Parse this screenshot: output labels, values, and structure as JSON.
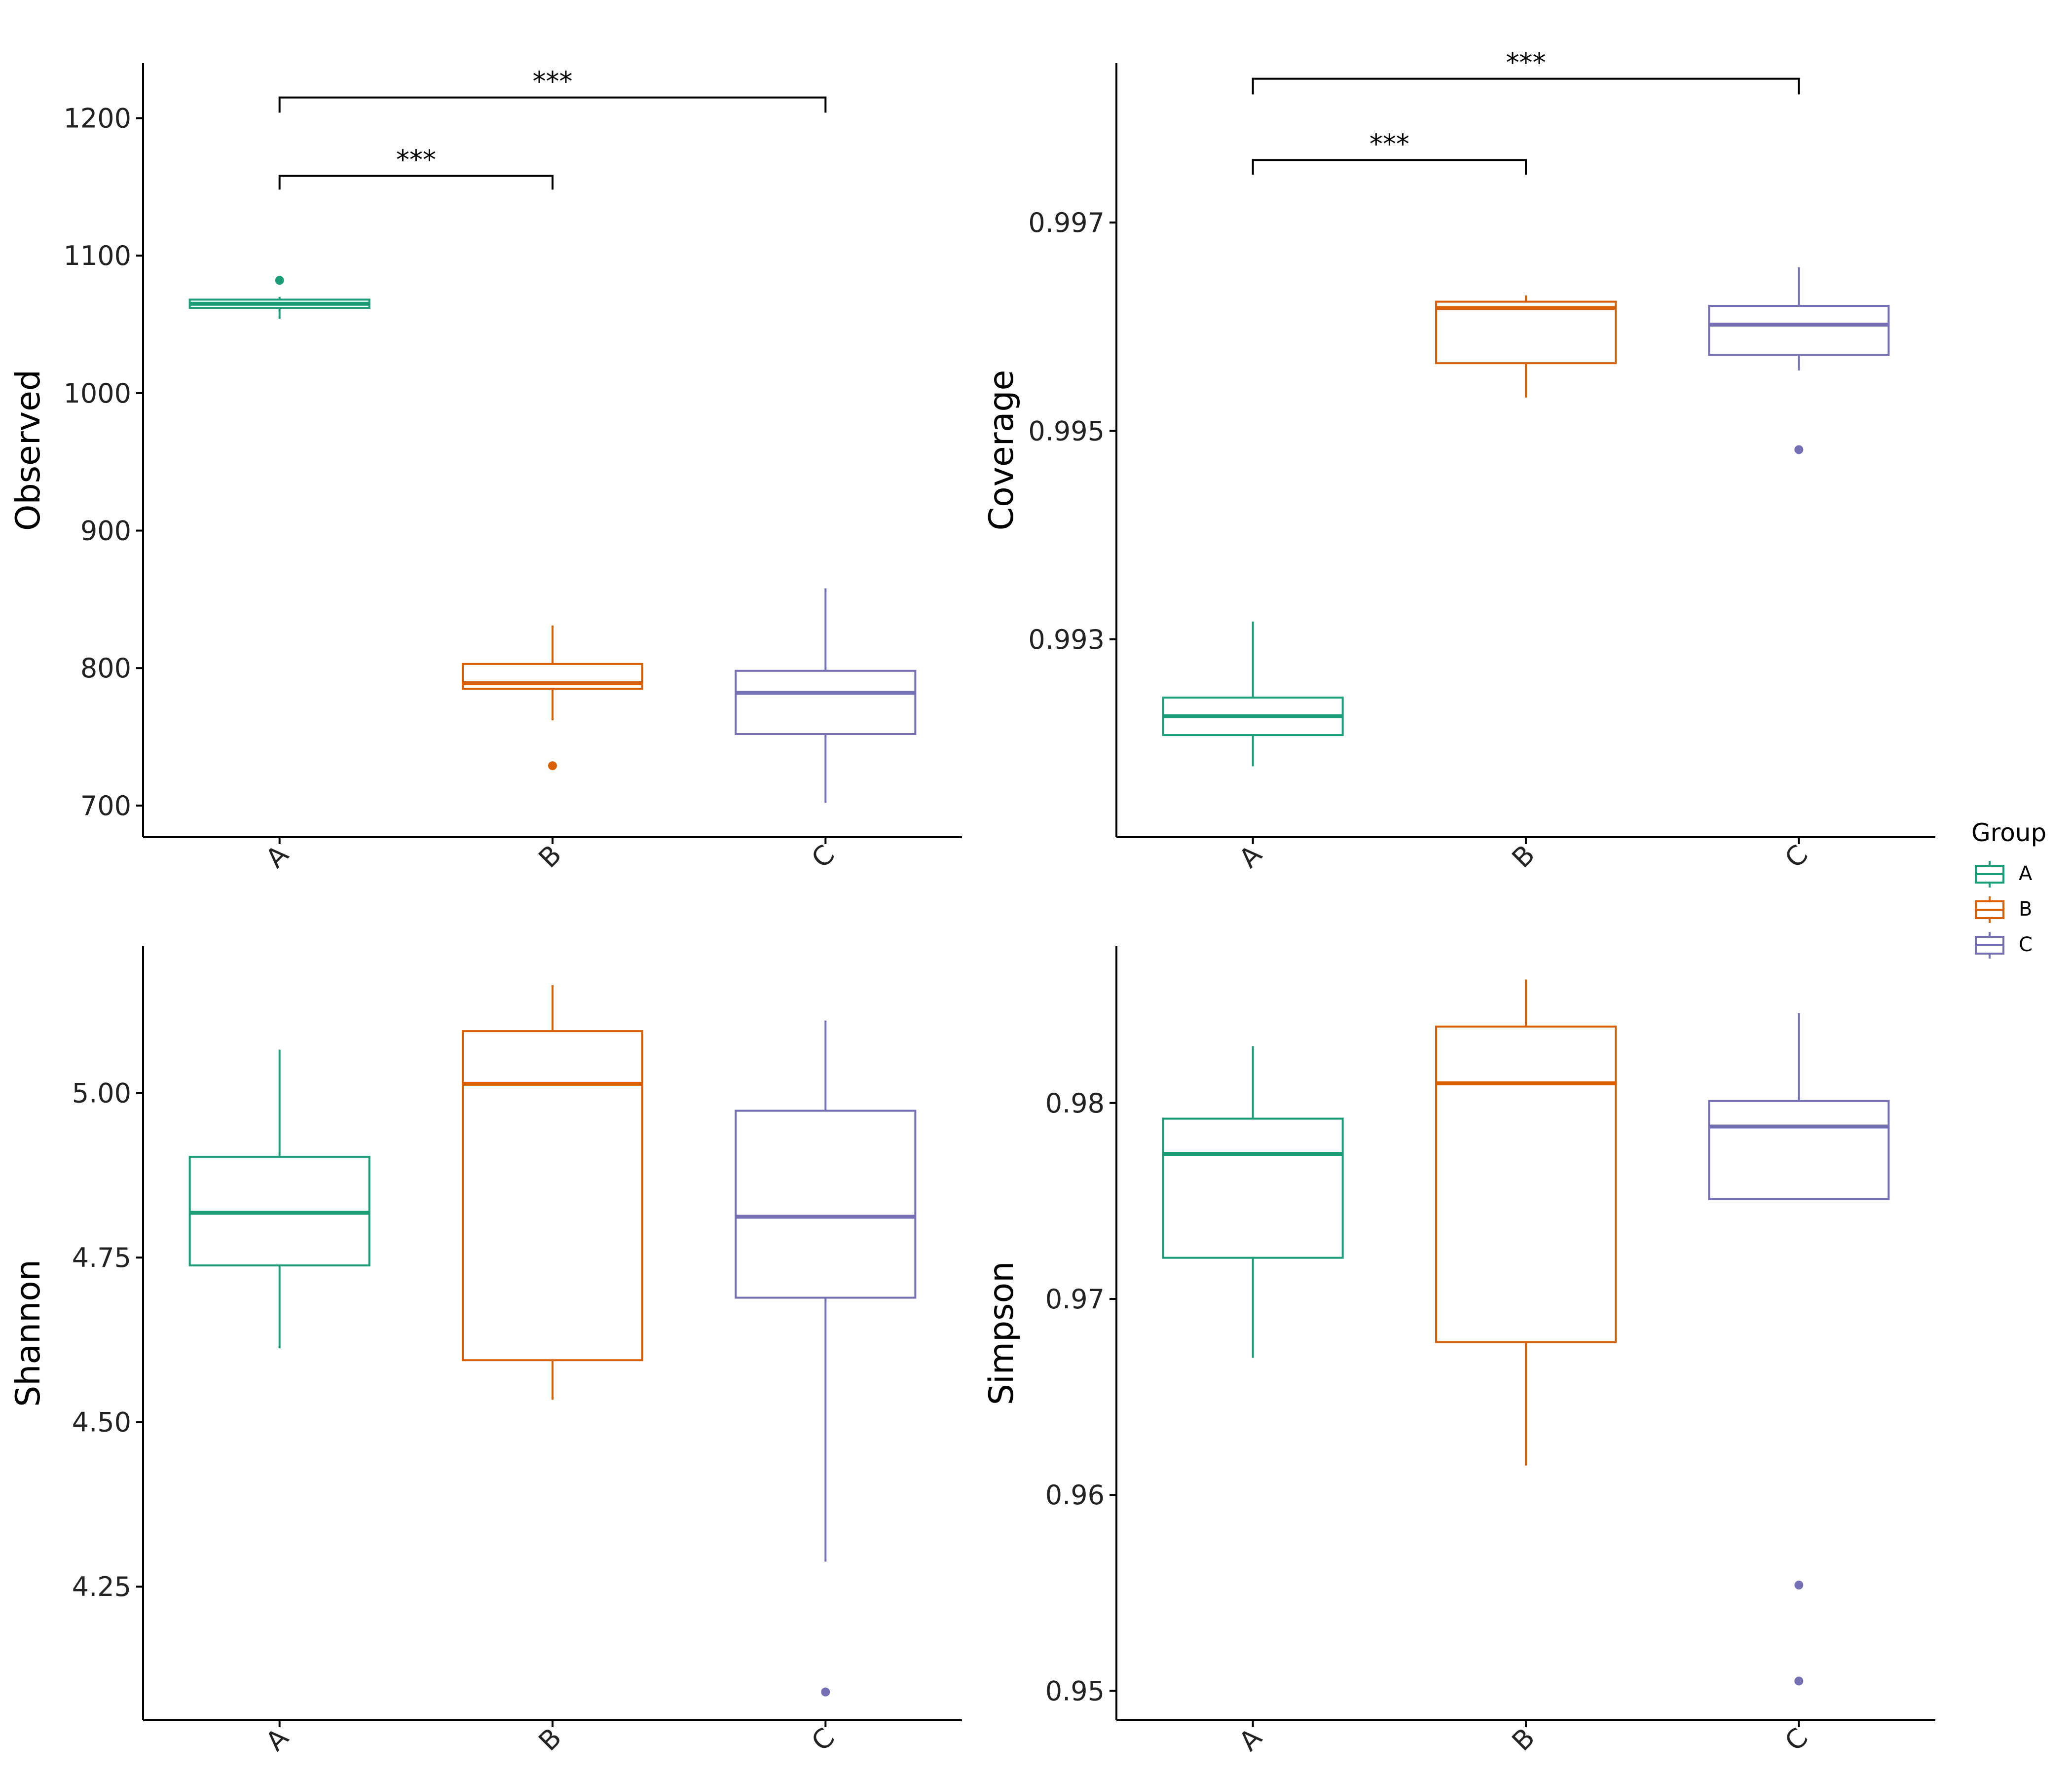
{
  "colors": {
    "A": "#1b9e77",
    "B": "#d95f02",
    "C": "#7570b3"
  },
  "legend": {
    "title": "Group",
    "items": [
      {
        "key": "A",
        "label": "A"
      },
      {
        "key": "B",
        "label": "B"
      },
      {
        "key": "C",
        "label": "C"
      }
    ]
  },
  "chart_data": [
    {
      "type": "box",
      "panel": "top-left",
      "ylabel": "Observed",
      "categories": [
        "A",
        "B",
        "C"
      ],
      "ylim": [
        677,
        1240
      ],
      "yticks": [
        700,
        800,
        900,
        1000,
        1100,
        1200
      ],
      "ytick_labels": [
        "700",
        "800",
        "900",
        "1000",
        "1100",
        "1200"
      ],
      "boxes": [
        {
          "group": "A",
          "whislo": 1054,
          "q1": 1062,
          "med": 1065,
          "q3": 1068,
          "whishi": 1070,
          "outliers": [
            1082
          ]
        },
        {
          "group": "B",
          "whislo": 762,
          "q1": 785,
          "med": 789,
          "q3": 803,
          "whishi": 831,
          "outliers": [
            729
          ]
        },
        {
          "group": "C",
          "whislo": 702,
          "q1": 752,
          "med": 782,
          "q3": 798,
          "whishi": 858,
          "outliers": []
        }
      ],
      "significance": [
        {
          "from": "A",
          "to": "B",
          "label": "***",
          "y": 1158,
          "drop": 1148
        },
        {
          "from": "A",
          "to": "C",
          "label": "***",
          "y": 1215,
          "drop": 1204
        }
      ]
    },
    {
      "type": "box",
      "panel": "top-right",
      "ylabel": "Coverage",
      "categories": [
        "A",
        "B",
        "C"
      ],
      "ylim": [
        0.9911,
        0.99853
      ],
      "yticks": [
        0.993,
        0.995,
        0.997
      ],
      "ytick_labels": [
        "0.993",
        "0.995",
        "0.997"
      ],
      "boxes": [
        {
          "group": "A",
          "whislo": 0.99178,
          "q1": 0.99208,
          "med": 0.99226,
          "q3": 0.99244,
          "whishi": 0.99317,
          "outliers": []
        },
        {
          "group": "B",
          "whislo": 0.99532,
          "q1": 0.99565,
          "med": 0.99618,
          "q3": 0.99624,
          "whishi": 0.9963,
          "outliers": []
        },
        {
          "group": "C",
          "whislo": 0.99558,
          "q1": 0.99573,
          "med": 0.99602,
          "q3": 0.9962,
          "whishi": 0.99657,
          "outliers": [
            0.99482
          ]
        }
      ],
      "significance": [
        {
          "from": "A",
          "to": "B",
          "label": "***",
          "y": 0.9976,
          "drop": 0.99746
        },
        {
          "from": "A",
          "to": "C",
          "label": "***",
          "y": 0.99838,
          "drop": 0.99823
        }
      ]
    },
    {
      "type": "box",
      "panel": "bottom-left",
      "ylabel": "Shannon",
      "categories": [
        "A",
        "B",
        "C"
      ],
      "ylim": [
        4.047,
        5.223
      ],
      "yticks": [
        4.25,
        4.5,
        4.75,
        5.0
      ],
      "ytick_labels": [
        "4.25",
        "4.50",
        "4.75",
        "5.00"
      ],
      "boxes": [
        {
          "group": "A",
          "whislo": 4.612,
          "q1": 4.738,
          "med": 4.818,
          "q3": 4.903,
          "whishi": 5.066,
          "outliers": []
        },
        {
          "group": "B",
          "whislo": 4.534,
          "q1": 4.594,
          "med": 5.014,
          "q3": 5.094,
          "whishi": 5.164,
          "outliers": []
        },
        {
          "group": "C",
          "whislo": 4.288,
          "q1": 4.689,
          "med": 4.812,
          "q3": 4.973,
          "whishi": 5.11,
          "outliers": [
            4.09
          ]
        }
      ],
      "significance": []
    },
    {
      "type": "box",
      "panel": "bottom-right",
      "ylabel": "Simpson",
      "categories": [
        "A",
        "B",
        "C"
      ],
      "ylim": [
        0.9485,
        0.988
      ],
      "yticks": [
        0.95,
        0.96,
        0.97,
        0.98
      ],
      "ytick_labels": [
        "0.95",
        "0.96",
        "0.97",
        "0.98"
      ],
      "boxes": [
        {
          "group": "A",
          "whislo": 0.967,
          "q1": 0.9721,
          "med": 0.9774,
          "q3": 0.9792,
          "whishi": 0.9829,
          "outliers": []
        },
        {
          "group": "B",
          "whislo": 0.9615,
          "q1": 0.9678,
          "med": 0.981,
          "q3": 0.9839,
          "whishi": 0.9863,
          "outliers": []
        },
        {
          "group": "C",
          "whislo": 0.9751,
          "q1": 0.9751,
          "med": 0.9788,
          "q3": 0.9801,
          "whishi": 0.9846,
          "outliers": [
            0.9554,
            0.9505
          ]
        }
      ],
      "significance": []
    }
  ]
}
